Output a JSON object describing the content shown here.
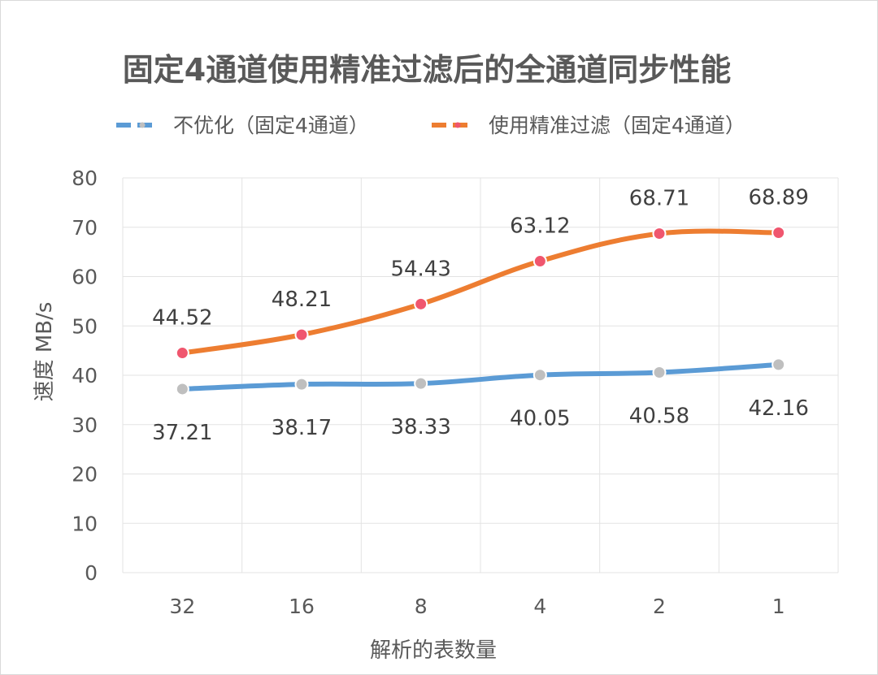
{
  "chart_data": {
    "type": "line",
    "title": "固定4通道使用精准过滤后的全通道同步性能",
    "xlabel": "解析的表数量",
    "ylabel": "速度 MB/s",
    "categories": [
      "32",
      "16",
      "8",
      "4",
      "2",
      "1"
    ],
    "ylim": [
      0,
      80
    ],
    "yticks": [
      "0",
      "10",
      "20",
      "30",
      "40",
      "50",
      "60",
      "70",
      "80"
    ],
    "grid": true,
    "legend_position": "top",
    "series": [
      {
        "name": "不优化（固定4通道）",
        "values": [
          37.21,
          38.17,
          38.33,
          40.05,
          40.58,
          42.16
        ],
        "labels": [
          "37.21",
          "38.17",
          "38.33",
          "40.05",
          "40.58",
          "42.16"
        ],
        "line_color": "#5B9BD5",
        "marker_color": "#BFBFBF"
      },
      {
        "name": "使用精准过滤（固定4通道）",
        "values": [
          44.52,
          48.21,
          54.43,
          63.12,
          68.71,
          68.89
        ],
        "labels": [
          "44.52",
          "48.21",
          "54.43",
          "63.12",
          "68.71",
          "68.89"
        ],
        "line_color": "#ED7D31",
        "marker_color": "#F0566E"
      }
    ]
  }
}
